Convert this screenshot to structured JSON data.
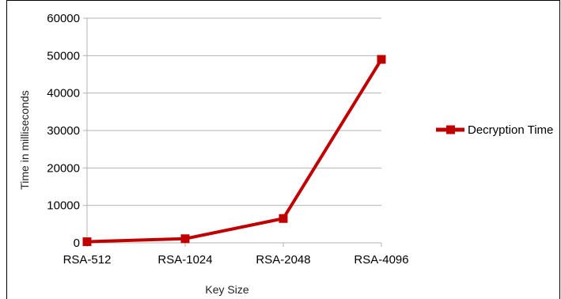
{
  "chart_data": {
    "type": "line",
    "categories": [
      "RSA-512",
      "RSA-1024",
      "RSA-2048",
      "RSA-4096"
    ],
    "series": [
      {
        "name": "Decryption Time",
        "values": [
          300,
          1100,
          6500,
          49000
        ],
        "color": "#c00000"
      }
    ],
    "xlabel": "Key Size",
    "ylabel": "Time in milliseconds",
    "ylim": [
      0,
      60000
    ],
    "yticks": [
      "0",
      "10000",
      "20000",
      "30000",
      "40000",
      "50000",
      "60000"
    ],
    "grid": true,
    "legend": "right",
    "marker": "square"
  }
}
